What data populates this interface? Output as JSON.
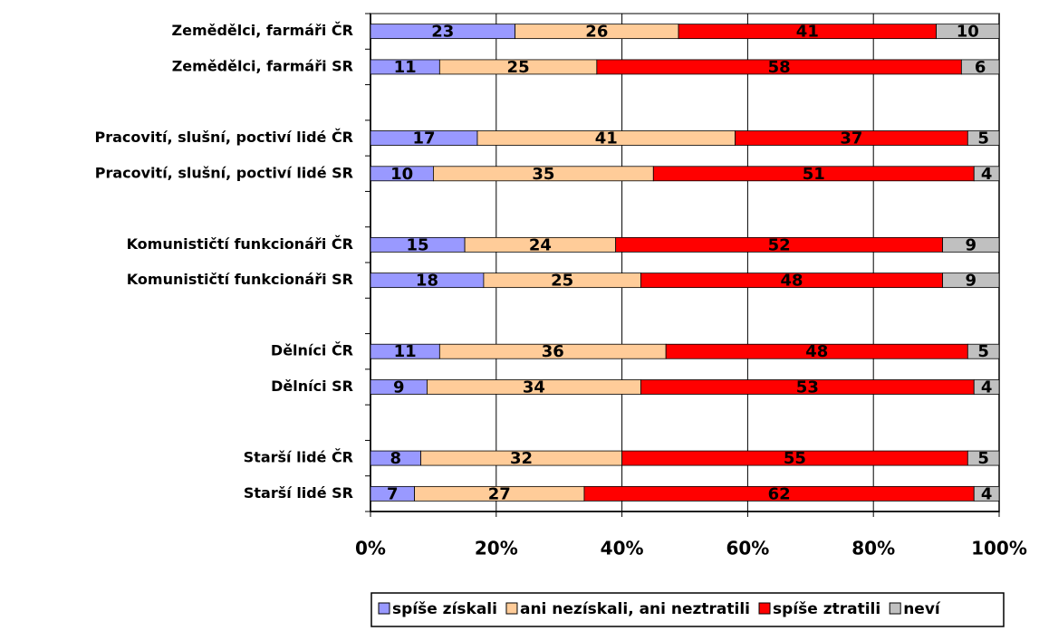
{
  "chart_data": {
    "type": "stacked-bar-horizontal",
    "categories": [
      "Zemědělci, farmáři ČR",
      "Zemědělci, farmáři SR",
      null,
      "Pracovití, slušní, poctiví lidé ČR",
      "Pracovití, slušní, poctiví lidé SR",
      null,
      "Komunističtí funkcionáři ČR",
      "Komunističtí funkcionáři SR",
      null,
      "Dělníci ČR",
      "Dělníci SR",
      null,
      "Starší lidé ČR",
      "Starší lidé SR"
    ],
    "series": [
      {
        "name": "spíše získali",
        "color": "#9999ff",
        "values": [
          23,
          11,
          null,
          17,
          10,
          null,
          15,
          18,
          null,
          11,
          9,
          null,
          8,
          7
        ]
      },
      {
        "name": "ani nezískali, ani neztratili",
        "color": "#ffcc99",
        "values": [
          26,
          25,
          null,
          41,
          35,
          null,
          24,
          25,
          null,
          36,
          34,
          null,
          32,
          27
        ]
      },
      {
        "name": "spíše ztratili",
        "color": "#ff0000",
        "values": [
          41,
          58,
          null,
          37,
          51,
          null,
          52,
          48,
          null,
          48,
          53,
          null,
          55,
          62
        ]
      },
      {
        "name": "neví",
        "color": "#c0c0c0",
        "values": [
          10,
          6,
          null,
          5,
          4,
          null,
          9,
          9,
          null,
          5,
          4,
          null,
          5,
          4
        ]
      }
    ],
    "xlim": [
      0,
      100
    ],
    "xticks": [
      {
        "value": 0,
        "label": "0%"
      },
      {
        "value": 20,
        "label": "20%"
      },
      {
        "value": 40,
        "label": "40%"
      },
      {
        "value": 60,
        "label": "60%"
      },
      {
        "value": 80,
        "label": "80%"
      },
      {
        "value": 100,
        "label": "100%"
      }
    ],
    "grid": true,
    "legend": "bottom"
  }
}
